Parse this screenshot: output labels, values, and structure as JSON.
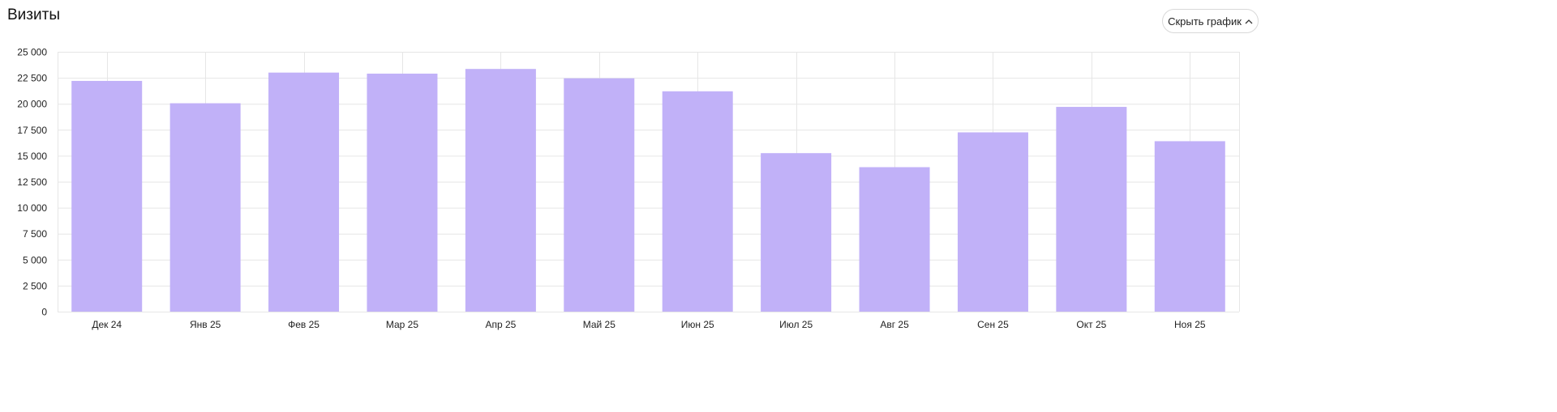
{
  "header": {
    "title": "Визиты",
    "hide_chart_label": "Скрыть график",
    "hide_icon": "chevron-up-icon"
  },
  "chart_data": {
    "type": "bar",
    "title": "",
    "xlabel": "",
    "ylabel": "",
    "categories": [
      "Дек 24",
      "Янв 25",
      "Фев 25",
      "Мар 25",
      "Апр 25",
      "Май 25",
      "Июн 25",
      "Июл 25",
      "Авг 25",
      "Сен 25",
      "Окт 25",
      "Ноя 25"
    ],
    "values": [
      22200,
      20050,
      23000,
      22900,
      23350,
      22450,
      21200,
      15250,
      13900,
      17250,
      19700,
      16400
    ],
    "ylim": [
      0,
      25000
    ],
    "yticks": [
      "0",
      "2 500",
      "5 000",
      "7 500",
      "10 000",
      "12 500",
      "15 000",
      "17 500",
      "20 000",
      "22 500",
      "25 000"
    ],
    "grid": true,
    "bar_color": "#c1b1f8",
    "grid_color": "#e6e6e6"
  }
}
